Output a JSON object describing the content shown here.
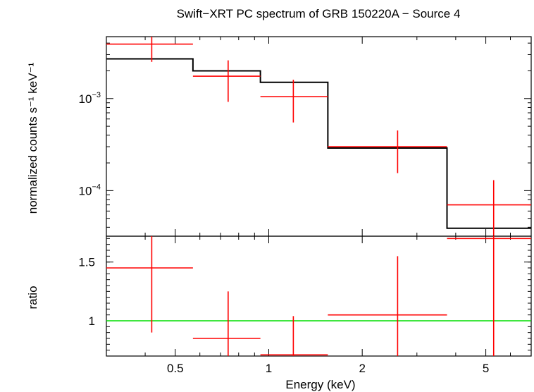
{
  "chart_data": [
    {
      "type": "line",
      "panel": "spectrum",
      "title": "Swift−XRT PC spectrum of GRB 150220A − Source 4",
      "xlabel": "Energy (keV)",
      "ylabel": "normalized counts s⁻¹ keV⁻¹",
      "x_scale": "log",
      "y_scale": "log",
      "xlim": [
        0.3,
        7.0
      ],
      "ylim": [
        3.2e-05,
        0.0047
      ],
      "y_ticks": [
        {
          "value": 0.001,
          "base": "10",
          "exp": "−3"
        },
        {
          "value": 0.0001,
          "base": "10",
          "exp": "−4"
        }
      ],
      "series": [
        {
          "kind": "data",
          "color": "#ff0000",
          "points": [
            {
              "x_lo": 0.3,
              "x_hi": 0.57,
              "x": 0.42,
              "y": 0.0039,
              "y_lo": 0.0025,
              "y_hi": 0.0053
            },
            {
              "x_lo": 0.57,
              "x_hi": 0.94,
              "x": 0.74,
              "y": 0.00175,
              "y_lo": 0.00092,
              "y_hi": 0.0026
            },
            {
              "x_lo": 0.94,
              "x_hi": 1.55,
              "x": 1.2,
              "y": 0.00105,
              "y_lo": 0.00055,
              "y_hi": 0.0016
            },
            {
              "x_lo": 1.55,
              "x_hi": 3.75,
              "x": 2.6,
              "y": 0.0003,
              "y_lo": 0.000155,
              "y_hi": 0.00045
            },
            {
              "x_lo": 3.75,
              "x_hi": 7.0,
              "x": 5.3,
              "y": 7e-05,
              "y_lo": 2.2e-05,
              "y_hi": 0.00013
            }
          ]
        },
        {
          "kind": "model",
          "color": "#000000",
          "steps": [
            {
              "x_lo": 0.3,
              "x_hi": 0.57,
              "y": 0.0027
            },
            {
              "x_lo": 0.57,
              "x_hi": 0.94,
              "y": 0.002
            },
            {
              "x_lo": 0.94,
              "x_hi": 1.55,
              "y": 0.0015
            },
            {
              "x_lo": 1.55,
              "x_hi": 3.75,
              "y": 0.00029
            },
            {
              "x_lo": 3.75,
              "x_hi": 7.0,
              "y": 3.9e-05
            }
          ]
        }
      ]
    },
    {
      "type": "scatter",
      "panel": "ratio",
      "xlabel": "Energy (keV)",
      "ylabel": "ratio",
      "x_scale": "log",
      "y_scale": "linear",
      "xlim": [
        0.3,
        7.0
      ],
      "ylim": [
        0.7,
        1.72
      ],
      "x_ticks": [
        {
          "value": 0.5,
          "label": "0.5"
        },
        {
          "value": 1,
          "label": "1"
        },
        {
          "value": 2,
          "label": "2"
        },
        {
          "value": 5,
          "label": "5"
        }
      ],
      "y_ticks": [
        {
          "value": 1,
          "label": "1"
        },
        {
          "value": 1.5,
          "label": "1.5"
        }
      ],
      "reference_line": {
        "y": 1,
        "color": "#00dd00"
      },
      "series": [
        {
          "kind": "data",
          "color": "#ff0000",
          "points": [
            {
              "x_lo": 0.3,
              "x_hi": 0.57,
              "x": 0.42,
              "y": 1.45,
              "y_lo": 0.9,
              "y_hi": 1.72
            },
            {
              "x_lo": 0.57,
              "x_hi": 0.94,
              "x": 0.74,
              "y": 0.85,
              "y_lo": 0.7,
              "y_hi": 1.25
            },
            {
              "x_lo": 0.94,
              "x_hi": 1.55,
              "x": 1.2,
              "y": 0.71,
              "y_lo": 0.7,
              "y_hi": 1.04
            },
            {
              "x_lo": 1.55,
              "x_hi": 3.75,
              "x": 2.6,
              "y": 1.05,
              "y_lo": 0.7,
              "y_hi": 1.55
            },
            {
              "x_lo": 3.75,
              "x_hi": 7.0,
              "x": 5.3,
              "y": 1.7,
              "y_lo": 0.7,
              "y_hi": 1.72
            }
          ]
        }
      ]
    }
  ]
}
